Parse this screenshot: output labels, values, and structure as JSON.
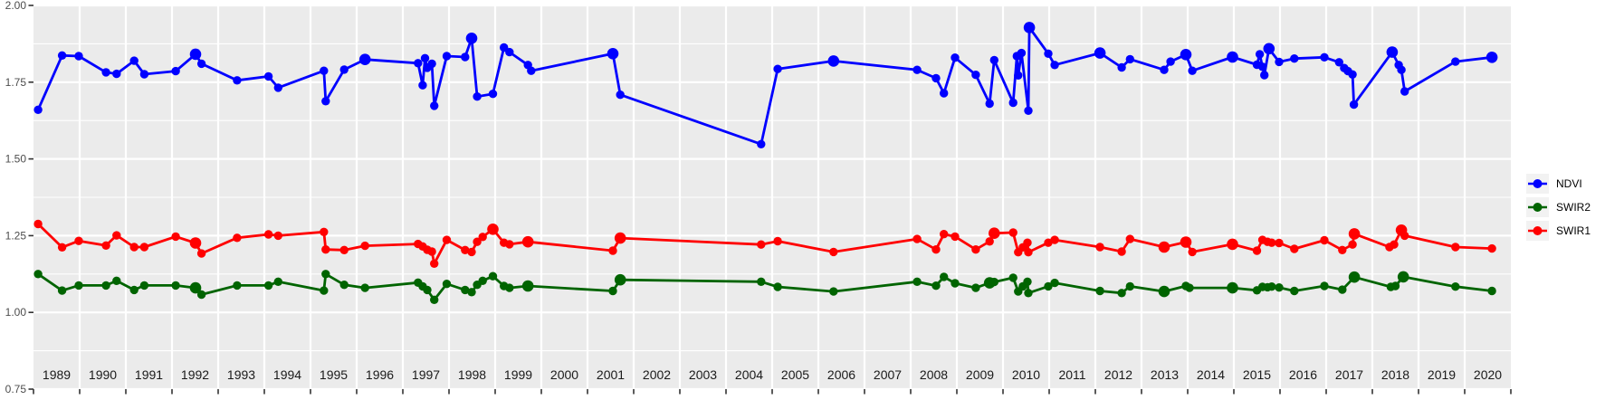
{
  "chart_data": {
    "type": "line",
    "title": "",
    "xlabel": "",
    "ylabel": "",
    "grid": true,
    "x_axis": {
      "range": [
        1989,
        2021
      ],
      "year_labels": [
        "1989",
        "1990",
        "1991",
        "1992",
        "1993",
        "1994",
        "1995",
        "1996",
        "1997",
        "1998",
        "1999",
        "2000",
        "2001",
        "2002",
        "2003",
        "2004",
        "2005",
        "2006",
        "2007",
        "2008",
        "2009",
        "2010",
        "2011",
        "2012",
        "2013",
        "2014",
        "2015",
        "2016",
        "2017",
        "2018",
        "2019",
        "2020"
      ]
    },
    "y_axis": {
      "range": [
        0.75,
        2.0
      ],
      "tick_values": [
        2.0,
        1.75,
        1.5,
        1.25,
        1.0,
        0.75
      ],
      "tick_labels": [
        "2.00",
        "1.75",
        "1.50",
        "1.25",
        "1.00",
        "0.75"
      ],
      "minor_tick_step": 0.125
    },
    "legend": {
      "position": "right"
    },
    "series": [
      {
        "name": "NDVI",
        "color": "#0000ff",
        "points": [
          [
            1989.1,
            1.66
          ],
          [
            1989.62,
            1.837
          ],
          [
            1989.98,
            1.835
          ],
          [
            1990.57,
            1.782
          ],
          [
            1990.8,
            1.777
          ],
          [
            1991.18,
            1.82
          ],
          [
            1991.4,
            1.776
          ],
          [
            1992.08,
            1.786
          ],
          [
            1992.51,
            1.841,
            6.3
          ],
          [
            1992.64,
            1.81
          ],
          [
            1993.41,
            1.756
          ],
          [
            1994.09,
            1.769
          ],
          [
            1994.3,
            1.732
          ],
          [
            1995.29,
            1.787
          ],
          [
            1995.33,
            1.688
          ],
          [
            1995.73,
            1.791
          ],
          [
            1996.18,
            1.824,
            6.3
          ],
          [
            1997.33,
            1.812
          ],
          [
            1997.43,
            1.74
          ],
          [
            1997.48,
            1.828
          ],
          [
            1997.53,
            1.797
          ],
          [
            1997.63,
            1.81
          ],
          [
            1997.68,
            1.673
          ],
          [
            1997.95,
            1.835
          ],
          [
            1998.35,
            1.832
          ],
          [
            1998.49,
            1.893,
            6.3
          ],
          [
            1998.61,
            1.703
          ],
          [
            1998.95,
            1.712
          ],
          [
            1999.19,
            1.863
          ],
          [
            1999.31,
            1.848
          ],
          [
            1999.71,
            1.806
          ],
          [
            1999.78,
            1.787
          ],
          [
            2001.55,
            1.843,
            6.3
          ],
          [
            2001.71,
            1.709
          ],
          [
            2004.76,
            1.548
          ],
          [
            2005.12,
            1.793
          ],
          [
            2006.33,
            1.819,
            6.3
          ],
          [
            2008.14,
            1.79
          ],
          [
            2008.55,
            1.763
          ],
          [
            2008.72,
            1.714
          ],
          [
            2008.96,
            1.83
          ],
          [
            2009.41,
            1.774
          ],
          [
            2009.71,
            1.68
          ],
          [
            2009.81,
            1.822
          ],
          [
            2010.22,
            1.683
          ],
          [
            2010.3,
            1.835
          ],
          [
            2010.33,
            1.772
          ],
          [
            2010.4,
            1.845
          ],
          [
            2010.55,
            1.657
          ],
          [
            2010.57,
            1.928,
            6.3
          ],
          [
            2010.98,
            1.843
          ],
          [
            2011.12,
            1.806
          ],
          [
            2012.1,
            1.845,
            6.3
          ],
          [
            2012.57,
            1.798
          ],
          [
            2012.75,
            1.825
          ],
          [
            2013.49,
            1.79
          ],
          [
            2013.63,
            1.817
          ],
          [
            2013.96,
            1.84,
            6.3
          ],
          [
            2014.1,
            1.787
          ],
          [
            2014.97,
            1.832,
            6.3
          ],
          [
            2015.5,
            1.807
          ],
          [
            2015.56,
            1.841
          ],
          [
            2015.62,
            1.8
          ],
          [
            2015.66,
            1.773
          ],
          [
            2015.76,
            1.859,
            6.3
          ],
          [
            2015.98,
            1.816
          ],
          [
            2016.31,
            1.827
          ],
          [
            2016.96,
            1.831
          ],
          [
            2017.28,
            1.815
          ],
          [
            2017.39,
            1.796
          ],
          [
            2017.47,
            1.786
          ],
          [
            2017.57,
            1.775
          ],
          [
            2017.6,
            1.677
          ],
          [
            2018.43,
            1.848,
            6.3
          ],
          [
            2018.57,
            1.806
          ],
          [
            2018.63,
            1.79
          ],
          [
            2018.7,
            1.72
          ],
          [
            2019.8,
            1.817
          ],
          [
            2020.59,
            1.831,
            6.3
          ]
        ]
      },
      {
        "name": "SWIR2",
        "color": "#006400",
        "points": [
          [
            1989.1,
            1.125
          ],
          [
            1989.62,
            1.071
          ],
          [
            1989.98,
            1.088
          ],
          [
            1990.57,
            1.088
          ],
          [
            1990.8,
            1.103
          ],
          [
            1991.18,
            1.073
          ],
          [
            1991.4,
            1.088
          ],
          [
            1992.08,
            1.088
          ],
          [
            1992.51,
            1.08,
            6.3
          ],
          [
            1992.64,
            1.058
          ],
          [
            1993.41,
            1.088
          ],
          [
            1994.09,
            1.088
          ],
          [
            1994.3,
            1.1
          ],
          [
            1995.29,
            1.071
          ],
          [
            1995.33,
            1.125
          ],
          [
            1995.73,
            1.09
          ],
          [
            1996.18,
            1.08
          ],
          [
            1997.33,
            1.097
          ],
          [
            1997.43,
            1.085
          ],
          [
            1997.53,
            1.073
          ],
          [
            1997.68,
            1.041
          ],
          [
            1997.95,
            1.093
          ],
          [
            1998.35,
            1.073
          ],
          [
            1998.49,
            1.066
          ],
          [
            1998.61,
            1.09
          ],
          [
            1998.73,
            1.103
          ],
          [
            1998.95,
            1.118
          ],
          [
            1999.19,
            1.086
          ],
          [
            1999.31,
            1.08
          ],
          [
            1999.71,
            1.086,
            6.3
          ],
          [
            2001.55,
            1.07
          ],
          [
            2001.71,
            1.106,
            6.3
          ],
          [
            2004.76,
            1.1
          ],
          [
            2005.12,
            1.083
          ],
          [
            2006.33,
            1.068
          ],
          [
            2008.14,
            1.1
          ],
          [
            2008.55,
            1.087
          ],
          [
            2008.72,
            1.116
          ],
          [
            2008.96,
            1.095
          ],
          [
            2009.41,
            1.08
          ],
          [
            2009.71,
            1.096,
            6.3
          ],
          [
            2009.81,
            1.099
          ],
          [
            2010.22,
            1.113
          ],
          [
            2010.33,
            1.068
          ],
          [
            2010.43,
            1.085
          ],
          [
            2010.53,
            1.1
          ],
          [
            2010.55,
            1.063
          ],
          [
            2010.98,
            1.085
          ],
          [
            2011.12,
            1.096
          ],
          [
            2012.1,
            1.07
          ],
          [
            2012.57,
            1.063
          ],
          [
            2012.75,
            1.085
          ],
          [
            2013.49,
            1.068,
            6.3
          ],
          [
            2013.96,
            1.086
          ],
          [
            2014.04,
            1.08
          ],
          [
            2014.97,
            1.08,
            6.3
          ],
          [
            2015.5,
            1.072
          ],
          [
            2015.62,
            1.083
          ],
          [
            2015.73,
            1.082
          ],
          [
            2015.82,
            1.084
          ],
          [
            2015.98,
            1.081
          ],
          [
            2016.31,
            1.07
          ],
          [
            2016.96,
            1.086
          ],
          [
            2017.35,
            1.074
          ],
          [
            2017.61,
            1.115,
            6.3
          ],
          [
            2018.4,
            1.083
          ],
          [
            2018.5,
            1.086
          ],
          [
            2018.67,
            1.116,
            6.3
          ],
          [
            2019.8,
            1.084
          ],
          [
            2020.59,
            1.07
          ]
        ]
      },
      {
        "name": "SWIR1",
        "color": "#ff0000",
        "points": [
          [
            1989.1,
            1.288
          ],
          [
            1989.62,
            1.212
          ],
          [
            1989.98,
            1.233
          ],
          [
            1990.57,
            1.218
          ],
          [
            1990.8,
            1.251
          ],
          [
            1991.18,
            1.213
          ],
          [
            1991.4,
            1.213
          ],
          [
            1992.08,
            1.247
          ],
          [
            1992.51,
            1.226,
            6.3
          ],
          [
            1992.64,
            1.192
          ],
          [
            1993.41,
            1.243
          ],
          [
            1994.09,
            1.254
          ],
          [
            1994.3,
            1.25
          ],
          [
            1995.29,
            1.262
          ],
          [
            1995.33,
            1.205
          ],
          [
            1995.73,
            1.203
          ],
          [
            1996.18,
            1.217
          ],
          [
            1997.33,
            1.223
          ],
          [
            1997.43,
            1.215
          ],
          [
            1997.53,
            1.204
          ],
          [
            1997.63,
            1.198
          ],
          [
            1997.68,
            1.159
          ],
          [
            1997.95,
            1.236
          ],
          [
            1998.35,
            1.203
          ],
          [
            1998.49,
            1.197
          ],
          [
            1998.61,
            1.23
          ],
          [
            1998.73,
            1.246
          ],
          [
            1998.95,
            1.271,
            6.3
          ],
          [
            1999.19,
            1.227
          ],
          [
            1999.31,
            1.222
          ],
          [
            1999.71,
            1.23,
            6.3
          ],
          [
            2001.55,
            1.201
          ],
          [
            2001.71,
            1.242,
            6.3
          ],
          [
            2004.76,
            1.221
          ],
          [
            2005.12,
            1.232
          ],
          [
            2006.33,
            1.197
          ],
          [
            2008.14,
            1.239
          ],
          [
            2008.55,
            1.205
          ],
          [
            2008.72,
            1.255
          ],
          [
            2008.96,
            1.247
          ],
          [
            2009.41,
            1.205
          ],
          [
            2009.71,
            1.231
          ],
          [
            2009.81,
            1.258,
            6.3
          ],
          [
            2010.22,
            1.26
          ],
          [
            2010.33,
            1.196
          ],
          [
            2010.43,
            1.212
          ],
          [
            2010.53,
            1.227
          ],
          [
            2010.55,
            1.196
          ],
          [
            2010.98,
            1.227
          ],
          [
            2011.12,
            1.236
          ],
          [
            2012.1,
            1.213
          ],
          [
            2012.57,
            1.198
          ],
          [
            2012.75,
            1.239
          ],
          [
            2013.49,
            1.213,
            6.3
          ],
          [
            2013.96,
            1.229,
            6.3
          ],
          [
            2014.1,
            1.197
          ],
          [
            2014.97,
            1.222,
            6.3
          ],
          [
            2015.5,
            1.201
          ],
          [
            2015.62,
            1.236
          ],
          [
            2015.73,
            1.23
          ],
          [
            2015.82,
            1.227
          ],
          [
            2015.98,
            1.226
          ],
          [
            2016.31,
            1.207
          ],
          [
            2016.96,
            1.235
          ],
          [
            2017.35,
            1.203
          ],
          [
            2017.57,
            1.221
          ],
          [
            2017.61,
            1.256,
            6.3
          ],
          [
            2018.37,
            1.213
          ],
          [
            2018.47,
            1.221
          ],
          [
            2018.63,
            1.268,
            6.3
          ],
          [
            2018.7,
            1.25
          ],
          [
            2019.8,
            1.213
          ],
          [
            2020.59,
            1.208
          ]
        ]
      }
    ]
  },
  "styles": {
    "panel_bg": "#ebebeb",
    "grid_major": "#ffffff",
    "grid_minor": "#ffffff",
    "tick_color": "#333333",
    "y_label_color": "#4d4d4d",
    "x_label_color": "#1a1a1a",
    "legend_key_bg": "#f2f2f2",
    "legend_text_color": "#000000"
  }
}
